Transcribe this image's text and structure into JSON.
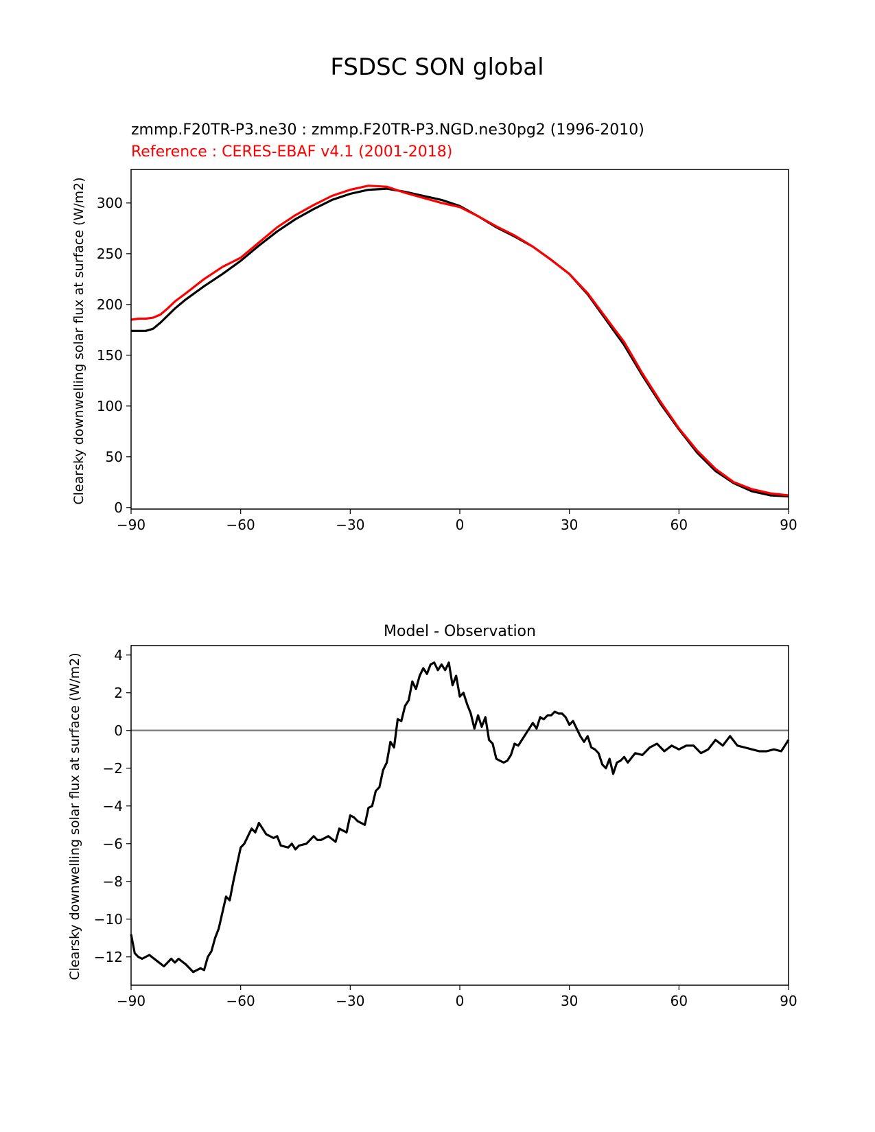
{
  "figure": {
    "suptitle": "FSDSC SON global"
  },
  "chart_data": [
    {
      "type": "line",
      "title_test": "zmmp.F20TR-P3.ne30 : zmmp.F20TR-P3.NGD.ne30pg2 (1996-2010)",
      "title_reference": "Reference : CERES-EBAF v4.1 (2001-2018)",
      "ylabel": "Clearsky downwelling solar flux at surface (W/m2)",
      "xlabel": "",
      "xlim": [
        -90,
        90
      ],
      "ylim": [
        -1.5,
        333
      ],
      "xticks": [
        -90,
        -60,
        -30,
        0,
        30,
        60,
        90
      ],
      "yticks": [
        0,
        50,
        100,
        150,
        200,
        250,
        300
      ],
      "grid": false,
      "series": [
        {
          "color": "#000000",
          "x": [
            -90,
            -88,
            -86,
            -84,
            -82,
            -80,
            -78,
            -75,
            -70,
            -65,
            -60,
            -55,
            -50,
            -45,
            -40,
            -35,
            -30,
            -25,
            -20,
            -15,
            -10,
            -5,
            0,
            5,
            10,
            15,
            20,
            25,
            30,
            35,
            40,
            45,
            50,
            55,
            60,
            65,
            70,
            75,
            80,
            85,
            90
          ],
          "y": [
            174,
            174,
            174,
            176,
            182,
            189,
            196,
            205,
            218,
            230,
            243,
            258,
            272,
            284,
            294,
            303,
            309,
            313,
            314,
            311,
            307,
            303,
            297,
            287,
            276,
            267,
            257,
            244,
            230,
            210,
            185,
            160,
            130,
            102,
            77,
            54,
            36,
            24,
            16,
            12,
            11
          ]
        },
        {
          "color": "#ff0000",
          "x": [
            -90,
            -88,
            -86,
            -84,
            -82,
            -80,
            -78,
            -75,
            -70,
            -65,
            -60,
            -55,
            -50,
            -45,
            -40,
            -35,
            -30,
            -25,
            -20,
            -15,
            -10,
            -5,
            0,
            5,
            10,
            15,
            20,
            25,
            30,
            35,
            40,
            45,
            50,
            55,
            60,
            65,
            70,
            75,
            80,
            85,
            90
          ],
          "y": [
            185,
            186,
            186,
            187,
            190,
            196,
            203,
            211,
            225,
            237,
            246,
            261,
            276,
            288,
            298,
            307,
            313,
            317,
            316,
            310,
            305,
            300,
            296,
            287,
            277,
            268,
            257,
            244,
            230,
            211,
            187,
            163,
            132,
            104,
            78,
            56,
            38,
            25,
            18,
            14,
            12
          ]
        }
      ]
    },
    {
      "type": "line",
      "title": "Model - Observation",
      "ylabel": "Clearsky downwelling solar flux at surface (W/m2)",
      "xlabel": "",
      "xlim": [
        -90,
        90
      ],
      "ylim": [
        -13.5,
        4.5
      ],
      "xticks": [
        -90,
        -60,
        -30,
        0,
        30,
        60,
        90
      ],
      "yticks": [
        4,
        2,
        0,
        -2,
        -4,
        -6,
        -8,
        -10,
        -12
      ],
      "grid": false,
      "reference_line": {
        "y": 0,
        "color": "#808080"
      },
      "series": [
        {
          "color": "#000000",
          "x": [
            -90,
            -89,
            -88,
            -87,
            -85,
            -83,
            -81,
            -79,
            -78,
            -77,
            -75,
            -73,
            -71,
            -70,
            -69,
            -68,
            -67,
            -66,
            -64,
            -63,
            -62,
            -60,
            -59,
            -57,
            -56,
            -55,
            -53,
            -51,
            -50,
            -49,
            -47,
            -46,
            -45,
            -44,
            -42,
            -40,
            -39,
            -38,
            -36,
            -34,
            -33,
            -31,
            -30,
            -29,
            -28,
            -26,
            -25,
            -24,
            -23,
            -22,
            -21,
            -20,
            -19,
            -18,
            -17,
            -16,
            -15,
            -14,
            -13,
            -12,
            -11,
            -10,
            -9,
            -8,
            -7,
            -6,
            -5,
            -4,
            -3,
            -2,
            -1,
            0,
            1,
            2,
            3,
            4,
            5,
            6,
            7,
            8,
            9,
            10,
            11,
            12,
            13,
            14,
            15,
            16,
            17,
            18,
            19,
            20,
            21,
            22,
            23,
            24,
            25,
            26,
            27,
            28,
            29,
            30,
            31,
            32,
            33,
            34,
            35,
            36,
            37,
            38,
            39,
            40,
            41,
            42,
            43,
            44,
            45,
            46,
            48,
            50,
            52,
            54,
            56,
            58,
            60,
            62,
            64,
            66,
            68,
            70,
            72,
            74,
            76,
            78,
            80,
            82,
            84,
            86,
            88,
            90
          ],
          "y": [
            -10.8,
            -11.8,
            -12.0,
            -12.1,
            -11.9,
            -12.2,
            -12.5,
            -12.1,
            -12.3,
            -12.1,
            -12.4,
            -12.8,
            -12.6,
            -12.7,
            -12.0,
            -11.7,
            -11.0,
            -10.5,
            -8.8,
            -9.0,
            -8.0,
            -6.2,
            -6.0,
            -5.2,
            -5.4,
            -4.9,
            -5.5,
            -5.7,
            -5.6,
            -6.1,
            -6.2,
            -6.0,
            -6.3,
            -6.1,
            -6.0,
            -5.6,
            -5.8,
            -5.8,
            -5.6,
            -5.9,
            -5.2,
            -5.4,
            -4.5,
            -4.6,
            -4.8,
            -5.0,
            -4.1,
            -4.0,
            -3.2,
            -3.0,
            -2.1,
            -1.7,
            -0.6,
            -0.9,
            0.6,
            0.5,
            1.3,
            1.6,
            2.6,
            2.2,
            2.9,
            3.3,
            3.0,
            3.5,
            3.6,
            3.2,
            3.5,
            3.2,
            3.6,
            2.4,
            2.9,
            1.8,
            2.0,
            1.4,
            0.9,
            0.1,
            0.8,
            0.2,
            0.7,
            -0.5,
            -0.7,
            -1.5,
            -1.6,
            -1.7,
            -1.6,
            -1.3,
            -0.7,
            -0.8,
            -0.5,
            -0.2,
            0.1,
            0.4,
            0.1,
            0.7,
            0.6,
            0.8,
            0.8,
            1.0,
            0.9,
            0.9,
            0.7,
            0.3,
            0.5,
            0.1,
            -0.3,
            -0.6,
            -0.3,
            -0.9,
            -1.0,
            -1.2,
            -1.8,
            -2.0,
            -1.5,
            -2.3,
            -1.7,
            -1.6,
            -1.4,
            -1.7,
            -1.2,
            -1.3,
            -0.9,
            -0.7,
            -1.1,
            -0.8,
            -1.0,
            -0.8,
            -0.8,
            -1.2,
            -1.0,
            -0.5,
            -0.8,
            -0.3,
            -0.8,
            -0.9,
            -1.0,
            -1.1,
            -1.1,
            -1.0,
            -1.1,
            -0.5
          ]
        }
      ]
    }
  ]
}
